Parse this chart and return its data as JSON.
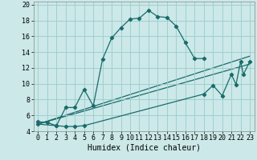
{
  "xlabel": "Humidex (Indice chaleur)",
  "bg_color": "#cce8e8",
  "grid_color": "#99cccc",
  "line_color": "#1a6b6b",
  "xlim": [
    -0.5,
    23.5
  ],
  "ylim": [
    4,
    20.4
  ],
  "xticks": [
    0,
    1,
    2,
    3,
    4,
    5,
    6,
    7,
    8,
    9,
    10,
    11,
    12,
    13,
    14,
    15,
    16,
    17,
    18,
    19,
    20,
    21,
    22,
    23
  ],
  "yticks": [
    4,
    6,
    8,
    10,
    12,
    14,
    16,
    18,
    20
  ],
  "curve1_x": [
    0,
    1,
    2,
    3,
    4,
    5,
    6,
    7,
    8,
    9,
    10,
    11,
    12,
    13,
    14,
    15,
    16,
    17,
    18
  ],
  "curve1_y": [
    5.2,
    5.1,
    4.7,
    7.0,
    7.0,
    9.3,
    7.2,
    13.1,
    15.8,
    17.1,
    18.2,
    18.3,
    19.3,
    18.5,
    18.4,
    17.3,
    15.2,
    13.2,
    13.2
  ],
  "curve2_x": [
    0,
    2,
    3,
    4,
    5,
    18,
    19,
    20,
    21,
    21.5,
    22,
    22.3,
    23
  ],
  "curve2_y": [
    4.9,
    4.7,
    4.6,
    4.6,
    4.7,
    8.7,
    9.8,
    8.5,
    11.2,
    9.9,
    12.8,
    11.2,
    12.8
  ],
  "line1_x": [
    0,
    23
  ],
  "line1_y": [
    4.9,
    12.5
  ],
  "line2_x": [
    0,
    23
  ],
  "line2_y": [
    4.9,
    13.5
  ],
  "marker": "D",
  "marker_size": 2.2,
  "linewidth": 0.9,
  "xlabel_fontsize": 7,
  "tick_fontsize": 6
}
